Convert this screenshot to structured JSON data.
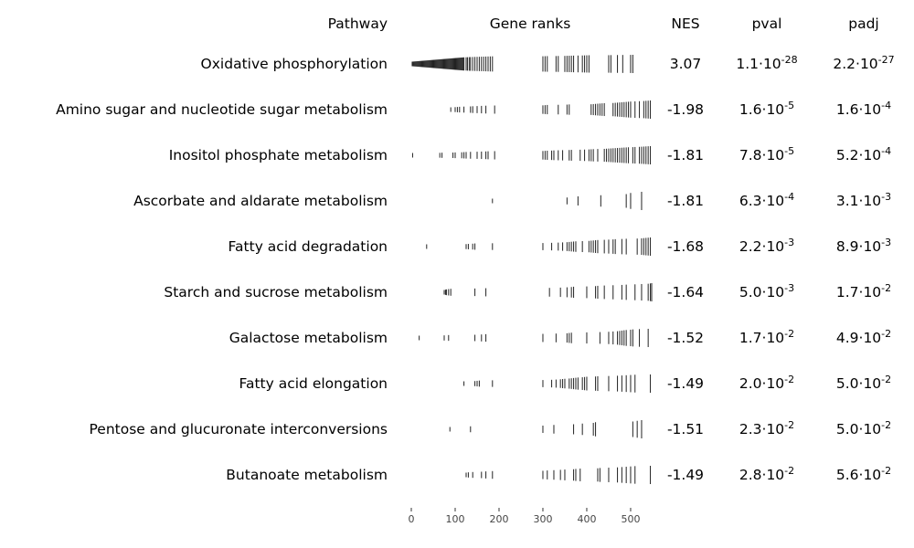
{
  "chart_data": {
    "type": "table",
    "headers": {
      "pathway": "Pathway",
      "ranks": "Gene ranks",
      "nes": "NES",
      "pval": "pval",
      "padj": "padj"
    },
    "x_axis": {
      "ticks": [
        0,
        100,
        200,
        300,
        400,
        500
      ],
      "range": [
        0,
        548
      ]
    },
    "rows": [
      {
        "pathway": "Oxidative phosphorylation",
        "nes": "3.07",
        "pval": {
          "mant": "1.1",
          "exp": "-28"
        },
        "padj": {
          "mant": "2.2",
          "exp": "-27"
        },
        "ranks": [
          2,
          4,
          6,
          8,
          10,
          12,
          14,
          16,
          18,
          20,
          22,
          24,
          26,
          28,
          30,
          32,
          34,
          36,
          38,
          40,
          42,
          44,
          46,
          48,
          50,
          52,
          54,
          56,
          58,
          60,
          62,
          64,
          66,
          68,
          70,
          72,
          74,
          76,
          78,
          80,
          82,
          84,
          86,
          88,
          90,
          92,
          94,
          96,
          98,
          100,
          102,
          104,
          106,
          108,
          110,
          112,
          114,
          116,
          118,
          120,
          125,
          128,
          132,
          135,
          140,
          145,
          150,
          155,
          160,
          165,
          170,
          175,
          180,
          185,
          300,
          305,
          310,
          330,
          335,
          350,
          355,
          360,
          365,
          370,
          380,
          390,
          395,
          400,
          405,
          450,
          455,
          470,
          482,
          500,
          505
        ]
      },
      {
        "pathway": "Amino sugar and nucleotide sugar metabolism",
        "nes": "-1.98",
        "pval": {
          "mant": "1.6",
          "exp": "-5"
        },
        "padj": {
          "mant": "1.6",
          "exp": "-4"
        },
        "ranks": [
          90,
          100,
          105,
          110,
          120,
          135,
          140,
          150,
          160,
          170,
          190,
          300,
          305,
          310,
          335,
          355,
          360,
          410,
          415,
          420,
          425,
          430,
          435,
          440,
          460,
          465,
          470,
          475,
          480,
          485,
          490,
          495,
          500,
          510,
          520,
          530,
          535,
          540,
          545
        ]
      },
      {
        "pathway": "Inositol phosphate metabolism",
        "nes": "-1.81",
        "pval": {
          "mant": "7.8",
          "exp": "-5"
        },
        "padj": {
          "mant": "5.2",
          "exp": "-4"
        },
        "ranks": [
          3,
          65,
          70,
          95,
          100,
          115,
          120,
          125,
          135,
          150,
          160,
          170,
          175,
          190,
          300,
          305,
          310,
          320,
          325,
          335,
          345,
          360,
          365,
          385,
          395,
          405,
          410,
          415,
          425,
          440,
          445,
          450,
          455,
          460,
          465,
          470,
          475,
          480,
          485,
          490,
          495,
          505,
          510,
          520,
          525,
          530,
          535,
          540,
          545
        ]
      },
      {
        "pathway": "Ascorbate and aldarate metabolism",
        "nes": "-1.81",
        "pval": {
          "mant": "6.3",
          "exp": "-4"
        },
        "padj": {
          "mant": "3.1",
          "exp": "-3"
        },
        "ranks": [
          185,
          355,
          380,
          432,
          490,
          500,
          525
        ]
      },
      {
        "pathway": "Fatty acid degradation",
        "nes": "-1.68",
        "pval": {
          "mant": "2.2",
          "exp": "-3"
        },
        "padj": {
          "mant": "8.9",
          "exp": "-3"
        },
        "ranks": [
          35,
          125,
          130,
          140,
          145,
          185,
          300,
          320,
          335,
          345,
          355,
          360,
          365,
          370,
          375,
          390,
          405,
          410,
          415,
          420,
          425,
          440,
          450,
          460,
          465,
          480,
          490,
          515,
          525,
          530,
          535,
          540,
          545
        ]
      },
      {
        "pathway": "Starch and sucrose metabolism",
        "nes": "-1.64",
        "pval": {
          "mant": "5.0",
          "exp": "-3"
        },
        "padj": {
          "mant": "1.7",
          "exp": "-2"
        },
        "ranks": [
          75,
          78,
          80,
          85,
          90,
          145,
          170,
          315,
          340,
          355,
          365,
          370,
          400,
          420,
          425,
          440,
          460,
          480,
          490,
          510,
          525,
          540,
          545,
          548
        ]
      },
      {
        "pathway": "Galactose metabolism",
        "nes": "-1.52",
        "pval": {
          "mant": "1.7",
          "exp": "-2"
        },
        "padj": {
          "mant": "4.9",
          "exp": "-2"
        },
        "ranks": [
          18,
          75,
          85,
          145,
          160,
          170,
          300,
          330,
          355,
          360,
          365,
          400,
          430,
          450,
          460,
          470,
          475,
          480,
          485,
          490,
          500,
          505,
          520,
          540
        ]
      },
      {
        "pathway": "Fatty acid elongation",
        "nes": "-1.49",
        "pval": {
          "mant": "2.0",
          "exp": "-2"
        },
        "padj": {
          "mant": "5.0",
          "exp": "-2"
        },
        "ranks": [
          120,
          145,
          150,
          155,
          185,
          300,
          320,
          330,
          340,
          345,
          350,
          360,
          365,
          370,
          375,
          380,
          390,
          395,
          400,
          420,
          425,
          450,
          470,
          480,
          490,
          500,
          510,
          545
        ]
      },
      {
        "pathway": "Pentose and glucuronate interconversions",
        "nes": "-1.51",
        "pval": {
          "mant": "2.3",
          "exp": "-2"
        },
        "padj": {
          "mant": "5.0",
          "exp": "-2"
        },
        "ranks": [
          88,
          135,
          300,
          325,
          370,
          390,
          415,
          420,
          505,
          515,
          525
        ]
      },
      {
        "pathway": "Butanoate metabolism",
        "nes": "-1.49",
        "pval": {
          "mant": "2.8",
          "exp": "-2"
        },
        "padj": {
          "mant": "5.6",
          "exp": "-2"
        },
        "ranks": [
          125,
          130,
          140,
          160,
          170,
          185,
          300,
          310,
          325,
          340,
          350,
          370,
          375,
          385,
          425,
          430,
          450,
          470,
          480,
          490,
          500,
          510,
          545
        ]
      }
    ]
  }
}
